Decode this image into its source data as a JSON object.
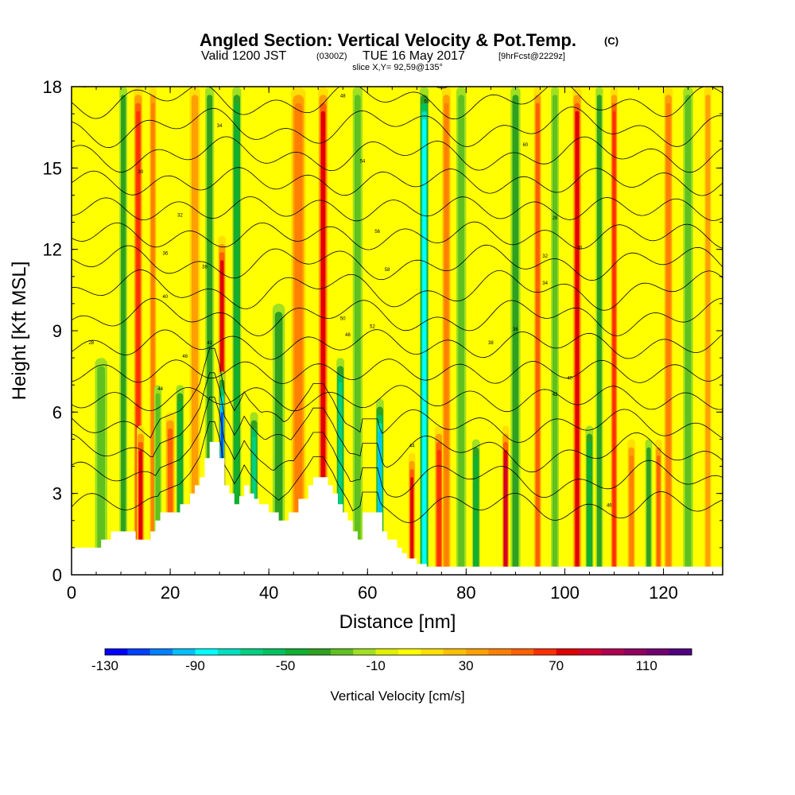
{
  "chart_data": {
    "type": "heatmap",
    "title": "Angled Section: Vertical Velocity & Pot.Temp.",
    "title_units": "(C)",
    "subtitle_main": "Valid 1200 JST",
    "subtitle_z": "(0300Z)",
    "subtitle_date": "TUE 16 May 2017",
    "subtitle_fcst": "[9hrFcst@2229z]",
    "slice_label": "slice X,Y= 92,59@135°",
    "xlabel": "Distance [nm]",
    "ylabel": "Height [Kft MSL]",
    "xlim": [
      0,
      132
    ],
    "ylim": [
      0,
      18
    ],
    "x_ticks": [
      "0",
      "20",
      "40",
      "60",
      "80",
      "100",
      "120"
    ],
    "y_ticks": [
      "0",
      "3",
      "6",
      "9",
      "12",
      "15",
      "18"
    ],
    "colorbar": {
      "label": "Vertical Velocity [cm/s]",
      "tick_labels": [
        "-130",
        "-90",
        "-50",
        "-10",
        "30",
        "70",
        "110"
      ],
      "range": [
        -130,
        130
      ],
      "step": 10,
      "colors": [
        "#0000ff",
        "#0040ff",
        "#0080ff",
        "#00c0ff",
        "#00ffff",
        "#00e0c0",
        "#00d080",
        "#00c060",
        "#10b030",
        "#30a020",
        "#60c020",
        "#a0e020",
        "#e0f000",
        "#ffff00",
        "#ffe000",
        "#ffc000",
        "#ffa000",
        "#ff8000",
        "#ff6000",
        "#ff3000",
        "#e00000",
        "#d00030",
        "#b00050",
        "#900060",
        "#700070",
        "#500080"
      ]
    },
    "vertical_velocity_bands": [
      {
        "x": 6,
        "w": 2.5,
        "v": -20,
        "top": 8
      },
      {
        "x": 10.5,
        "w": 1.6,
        "v": -30,
        "top": 18
      },
      {
        "x": 13.5,
        "w": 1.8,
        "v": 60,
        "top": 18
      },
      {
        "x": 14,
        "w": 1.6,
        "v": 70,
        "top": 5.5
      },
      {
        "x": 16.5,
        "w": 1.4,
        "v": 40,
        "top": 18
      },
      {
        "x": 17.5,
        "w": 1.5,
        "v": -20,
        "top": 7
      },
      {
        "x": 20,
        "w": 2,
        "v": 50,
        "top": 6
      },
      {
        "x": 22,
        "w": 1.6,
        "v": -40,
        "top": 7
      },
      {
        "x": 25,
        "w": 2.2,
        "v": 30,
        "top": 18
      },
      {
        "x": 28,
        "w": 1.8,
        "v": -30,
        "top": 18
      },
      {
        "x": 30.5,
        "w": 1.6,
        "v": 70,
        "top": 12.5
      },
      {
        "x": 30.5,
        "w": 1.2,
        "v": -110,
        "top": 7.5
      },
      {
        "x": 33.5,
        "w": 1.8,
        "v": -40,
        "top": 18
      },
      {
        "x": 37,
        "w": 1.6,
        "v": -60,
        "top": 6
      },
      {
        "x": 42,
        "w": 2.5,
        "v": -30,
        "top": 10
      },
      {
        "x": 46,
        "w": 3,
        "v": 40,
        "top": 18
      },
      {
        "x": 51,
        "w": 2,
        "v": 70,
        "top": 18
      },
      {
        "x": 54.5,
        "w": 1.6,
        "v": -60,
        "top": 8
      },
      {
        "x": 58,
        "w": 2,
        "v": -20,
        "top": 18
      },
      {
        "x": 62.5,
        "w": 1.6,
        "v": -90,
        "top": 6.5
      },
      {
        "x": 69,
        "w": 1.4,
        "v": 70,
        "top": 4.5
      },
      {
        "x": 71.5,
        "w": 1.8,
        "v": -80,
        "top": 18
      },
      {
        "x": 74.5,
        "w": 1.8,
        "v": 60,
        "top": 5.5
      },
      {
        "x": 76,
        "w": 1.8,
        "v": 40,
        "top": 18
      },
      {
        "x": 79,
        "w": 2,
        "v": -20,
        "top": 18
      },
      {
        "x": 82,
        "w": 1.6,
        "v": -40,
        "top": 5
      },
      {
        "x": 88,
        "w": 1.4,
        "v": 80,
        "top": 5.5
      },
      {
        "x": 90,
        "w": 2,
        "v": -30,
        "top": 18
      },
      {
        "x": 94.5,
        "w": 1.6,
        "v": 50,
        "top": 18
      },
      {
        "x": 98,
        "w": 1.6,
        "v": -20,
        "top": 18
      },
      {
        "x": 102.5,
        "w": 1.8,
        "v": 70,
        "top": 18
      },
      {
        "x": 105,
        "w": 1.6,
        "v": -40,
        "top": 5.5
      },
      {
        "x": 107,
        "w": 1.5,
        "v": -30,
        "top": 18
      },
      {
        "x": 110,
        "w": 1.4,
        "v": 60,
        "top": 18
      },
      {
        "x": 113.5,
        "w": 1.6,
        "v": 40,
        "top": 5
      },
      {
        "x": 117,
        "w": 1.4,
        "v": -30,
        "top": 5
      },
      {
        "x": 119,
        "w": 1.4,
        "v": 50,
        "top": 5
      },
      {
        "x": 121,
        "w": 1.8,
        "v": 40,
        "top": 18
      },
      {
        "x": 125,
        "w": 2,
        "v": -20,
        "top": 18
      },
      {
        "x": 129,
        "w": 1.5,
        "v": 30,
        "top": 18
      }
    ],
    "terrain": [
      [
        0,
        1.0
      ],
      [
        5,
        1.0
      ],
      [
        6,
        1.3
      ],
      [
        8,
        1.6
      ],
      [
        12,
        1.6
      ],
      [
        13,
        1.3
      ],
      [
        16,
        1.6
      ],
      [
        17,
        2.0
      ],
      [
        18,
        2.3
      ],
      [
        22,
        2.6
      ],
      [
        24,
        3.0
      ],
      [
        25,
        3.3
      ],
      [
        26,
        3.6
      ],
      [
        27,
        4.3
      ],
      [
        28,
        4.9
      ],
      [
        29,
        4.9
      ],
      [
        30,
        4.3
      ],
      [
        31,
        3.3
      ],
      [
        32,
        3.0
      ],
      [
        33,
        2.6
      ],
      [
        34,
        2.9
      ],
      [
        35,
        3.3
      ],
      [
        36,
        3.0
      ],
      [
        37,
        2.8
      ],
      [
        38,
        2.6
      ],
      [
        40,
        2.3
      ],
      [
        42,
        2.0
      ],
      [
        44,
        2.3
      ],
      [
        46,
        2.8
      ],
      [
        48,
        3.3
      ],
      [
        49,
        3.6
      ],
      [
        51,
        3.6
      ],
      [
        52,
        3.3
      ],
      [
        53,
        3.0
      ],
      [
        54,
        2.6
      ],
      [
        55,
        2.3
      ],
      [
        56,
        2.0
      ],
      [
        57,
        1.6
      ],
      [
        58,
        1.3
      ],
      [
        59,
        2.3
      ],
      [
        62,
        2.3
      ],
      [
        63,
        1.6
      ],
      [
        64,
        1.3
      ],
      [
        66,
        1.0
      ],
      [
        67,
        0.8
      ],
      [
        68,
        0.6
      ],
      [
        69,
        0.6
      ],
      [
        70,
        0.4
      ],
      [
        72,
        0.3
      ],
      [
        132,
        0.3
      ]
    ],
    "isentropes": [
      [
        2.5,
        6.1
      ],
      [
        3.5,
        7.4
      ],
      [
        4.5,
        6.7
      ],
      [
        5.5,
        8.3
      ],
      [
        6.5,
        8.0
      ],
      [
        7.5,
        8.6
      ],
      [
        8.5,
        8.4
      ],
      [
        9.5,
        8.8
      ],
      [
        10.5,
        9.0
      ],
      [
        11.5,
        10.3
      ],
      [
        12.5,
        11.0
      ],
      [
        13.5,
        12.0
      ],
      [
        14.5,
        13.4
      ],
      [
        15.5,
        14.3
      ],
      [
        16.5,
        15.5
      ],
      [
        17.5,
        16.3
      ],
      [
        18.5,
        17.2
      ],
      [
        19.5,
        18.1
      ],
      [
        20.5,
        19.1
      ],
      [
        21.5,
        19.9
      ],
      [
        22.5,
        20.9
      ],
      [
        23.5,
        21.8
      ],
      [
        24.5,
        22.9
      ],
      [
        25.5,
        24.0
      ],
      [
        26.5,
        25.0
      ],
      [
        27.5,
        26.1
      ],
      [
        28.5,
        27.3
      ],
      [
        29.5,
        28.4
      ]
    ],
    "contour_labels": [
      "28",
      "30",
      "32",
      "34",
      "36",
      "38",
      "40",
      "42",
      "44",
      "46",
      "48",
      "50",
      "52",
      "54",
      "56",
      "58",
      "60"
    ]
  }
}
